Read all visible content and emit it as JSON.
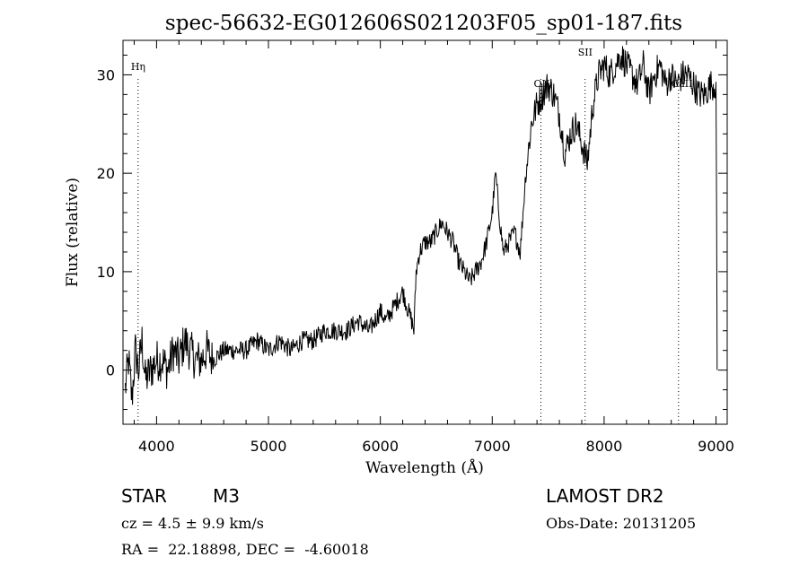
{
  "chart_data": {
    "type": "line",
    "title": "spec-56632-EG012606S021203F05_sp01-187.fits",
    "xlabel": "Wavelength (Å)",
    "ylabel": "Flux (relative)",
    "xlim": [
      3700,
      9100
    ],
    "ylim": [
      -5.5,
      33.5
    ],
    "xticks": [
      4000,
      5000,
      6000,
      7000,
      8000,
      9000
    ],
    "yticks": [
      0,
      10,
      20,
      30
    ],
    "grid": false,
    "line_color": "#000000",
    "series": [
      {
        "x": [
          3720,
          3750,
          3780,
          3810,
          3840,
          3870,
          3900,
          3950,
          4000,
          4050,
          4100,
          4150,
          4200,
          4250,
          4300,
          4350,
          4400,
          4450,
          4500,
          4600,
          4700,
          4800,
          4900,
          5000,
          5100,
          5200,
          5300,
          5400,
          5500,
          5600,
          5700,
          5800,
          5900,
          6000,
          6050,
          6100,
          6150,
          6200,
          6250,
          6280,
          6300,
          6320,
          6350,
          6400,
          6450,
          6500,
          6550,
          6600,
          6650,
          6700,
          6750,
          6800,
          6850,
          6900,
          6950,
          7000,
          7030,
          7060,
          7100,
          7150,
          7200,
          7250,
          7300,
          7350,
          7400,
          7450,
          7500,
          7550,
          7600,
          7650,
          7700,
          7750,
          7800,
          7850,
          7900,
          7950,
          8000,
          8050,
          8100,
          8150,
          8200,
          8250,
          8300,
          8350,
          8400,
          8450,
          8500,
          8550,
          8600,
          8650,
          8700,
          8750,
          8800,
          8850,
          8900,
          8950,
          9000,
          9010
        ],
        "y": [
          -2,
          1,
          -3,
          2,
          0,
          3,
          -1,
          0,
          1,
          1,
          0,
          2,
          1,
          3,
          2,
          1,
          1,
          2,
          1,
          2,
          2,
          2,
          3,
          2,
          3,
          2,
          3,
          3,
          4,
          4,
          4,
          5,
          4,
          6,
          5,
          6,
          7,
          8,
          6,
          5,
          4,
          10,
          12,
          13,
          13,
          14,
          15,
          14,
          13,
          11,
          10,
          9,
          10,
          11,
          13,
          16,
          20,
          16,
          12,
          13,
          14,
          12,
          20,
          25,
          27,
          28,
          29,
          28,
          26,
          22,
          24,
          25,
          23,
          21,
          27,
          30,
          31,
          30,
          31,
          32,
          31,
          30,
          29,
          31,
          28,
          30,
          31,
          29,
          30,
          29,
          30,
          30,
          29,
          28,
          28,
          29,
          29,
          0
        ]
      }
    ],
    "lines": [
      {
        "label": "Hη",
        "x": 3835
      },
      {
        "label": "OII",
        "x": 7435
      },
      {
        "label": "SII",
        "x": 7830
      },
      {
        "label": "CaII",
        "x": 8665
      }
    ]
  },
  "footer": {
    "class_label": "STAR",
    "subclass": "M3",
    "survey": "LAMOST DR2",
    "cz": "cz = 4.5 ± 9.9 km/s",
    "obs_date": "Obs-Date: 20131205",
    "coords": "RA =  22.18898, DEC =  -4.60018"
  }
}
